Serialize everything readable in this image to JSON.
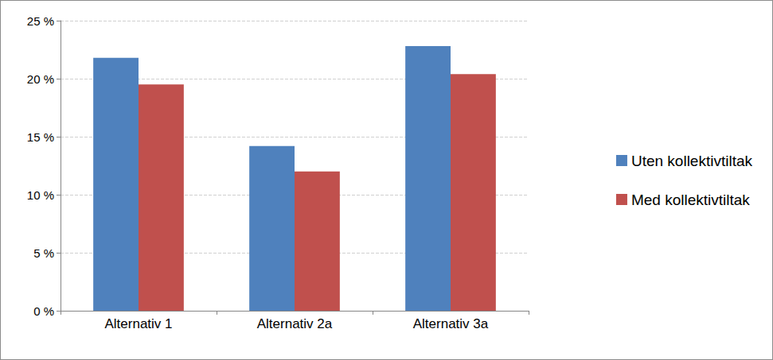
{
  "chart_data": {
    "type": "bar",
    "categories": [
      "Alternativ 1",
      "Alternativ 2a",
      "Alternativ 3a"
    ],
    "series": [
      {
        "name": "Uten kollektivtiltak",
        "color": "#4f81bd",
        "values": [
          21.8,
          14.2,
          22.8
        ]
      },
      {
        "name": "Med kollektivtiltak",
        "color": "#c0504d",
        "values": [
          19.5,
          12.0,
          20.4
        ]
      }
    ],
    "ylim": [
      0,
      25
    ],
    "yticks": [
      {
        "value": 0,
        "label": "0 %"
      },
      {
        "value": 5,
        "label": "5 %"
      },
      {
        "value": 10,
        "label": "10 %"
      },
      {
        "value": 15,
        "label": "15 %"
      },
      {
        "value": 20,
        "label": "20 %"
      },
      {
        "value": 25,
        "label": "25 %"
      }
    ],
    "grid": true,
    "legend": "right"
  }
}
